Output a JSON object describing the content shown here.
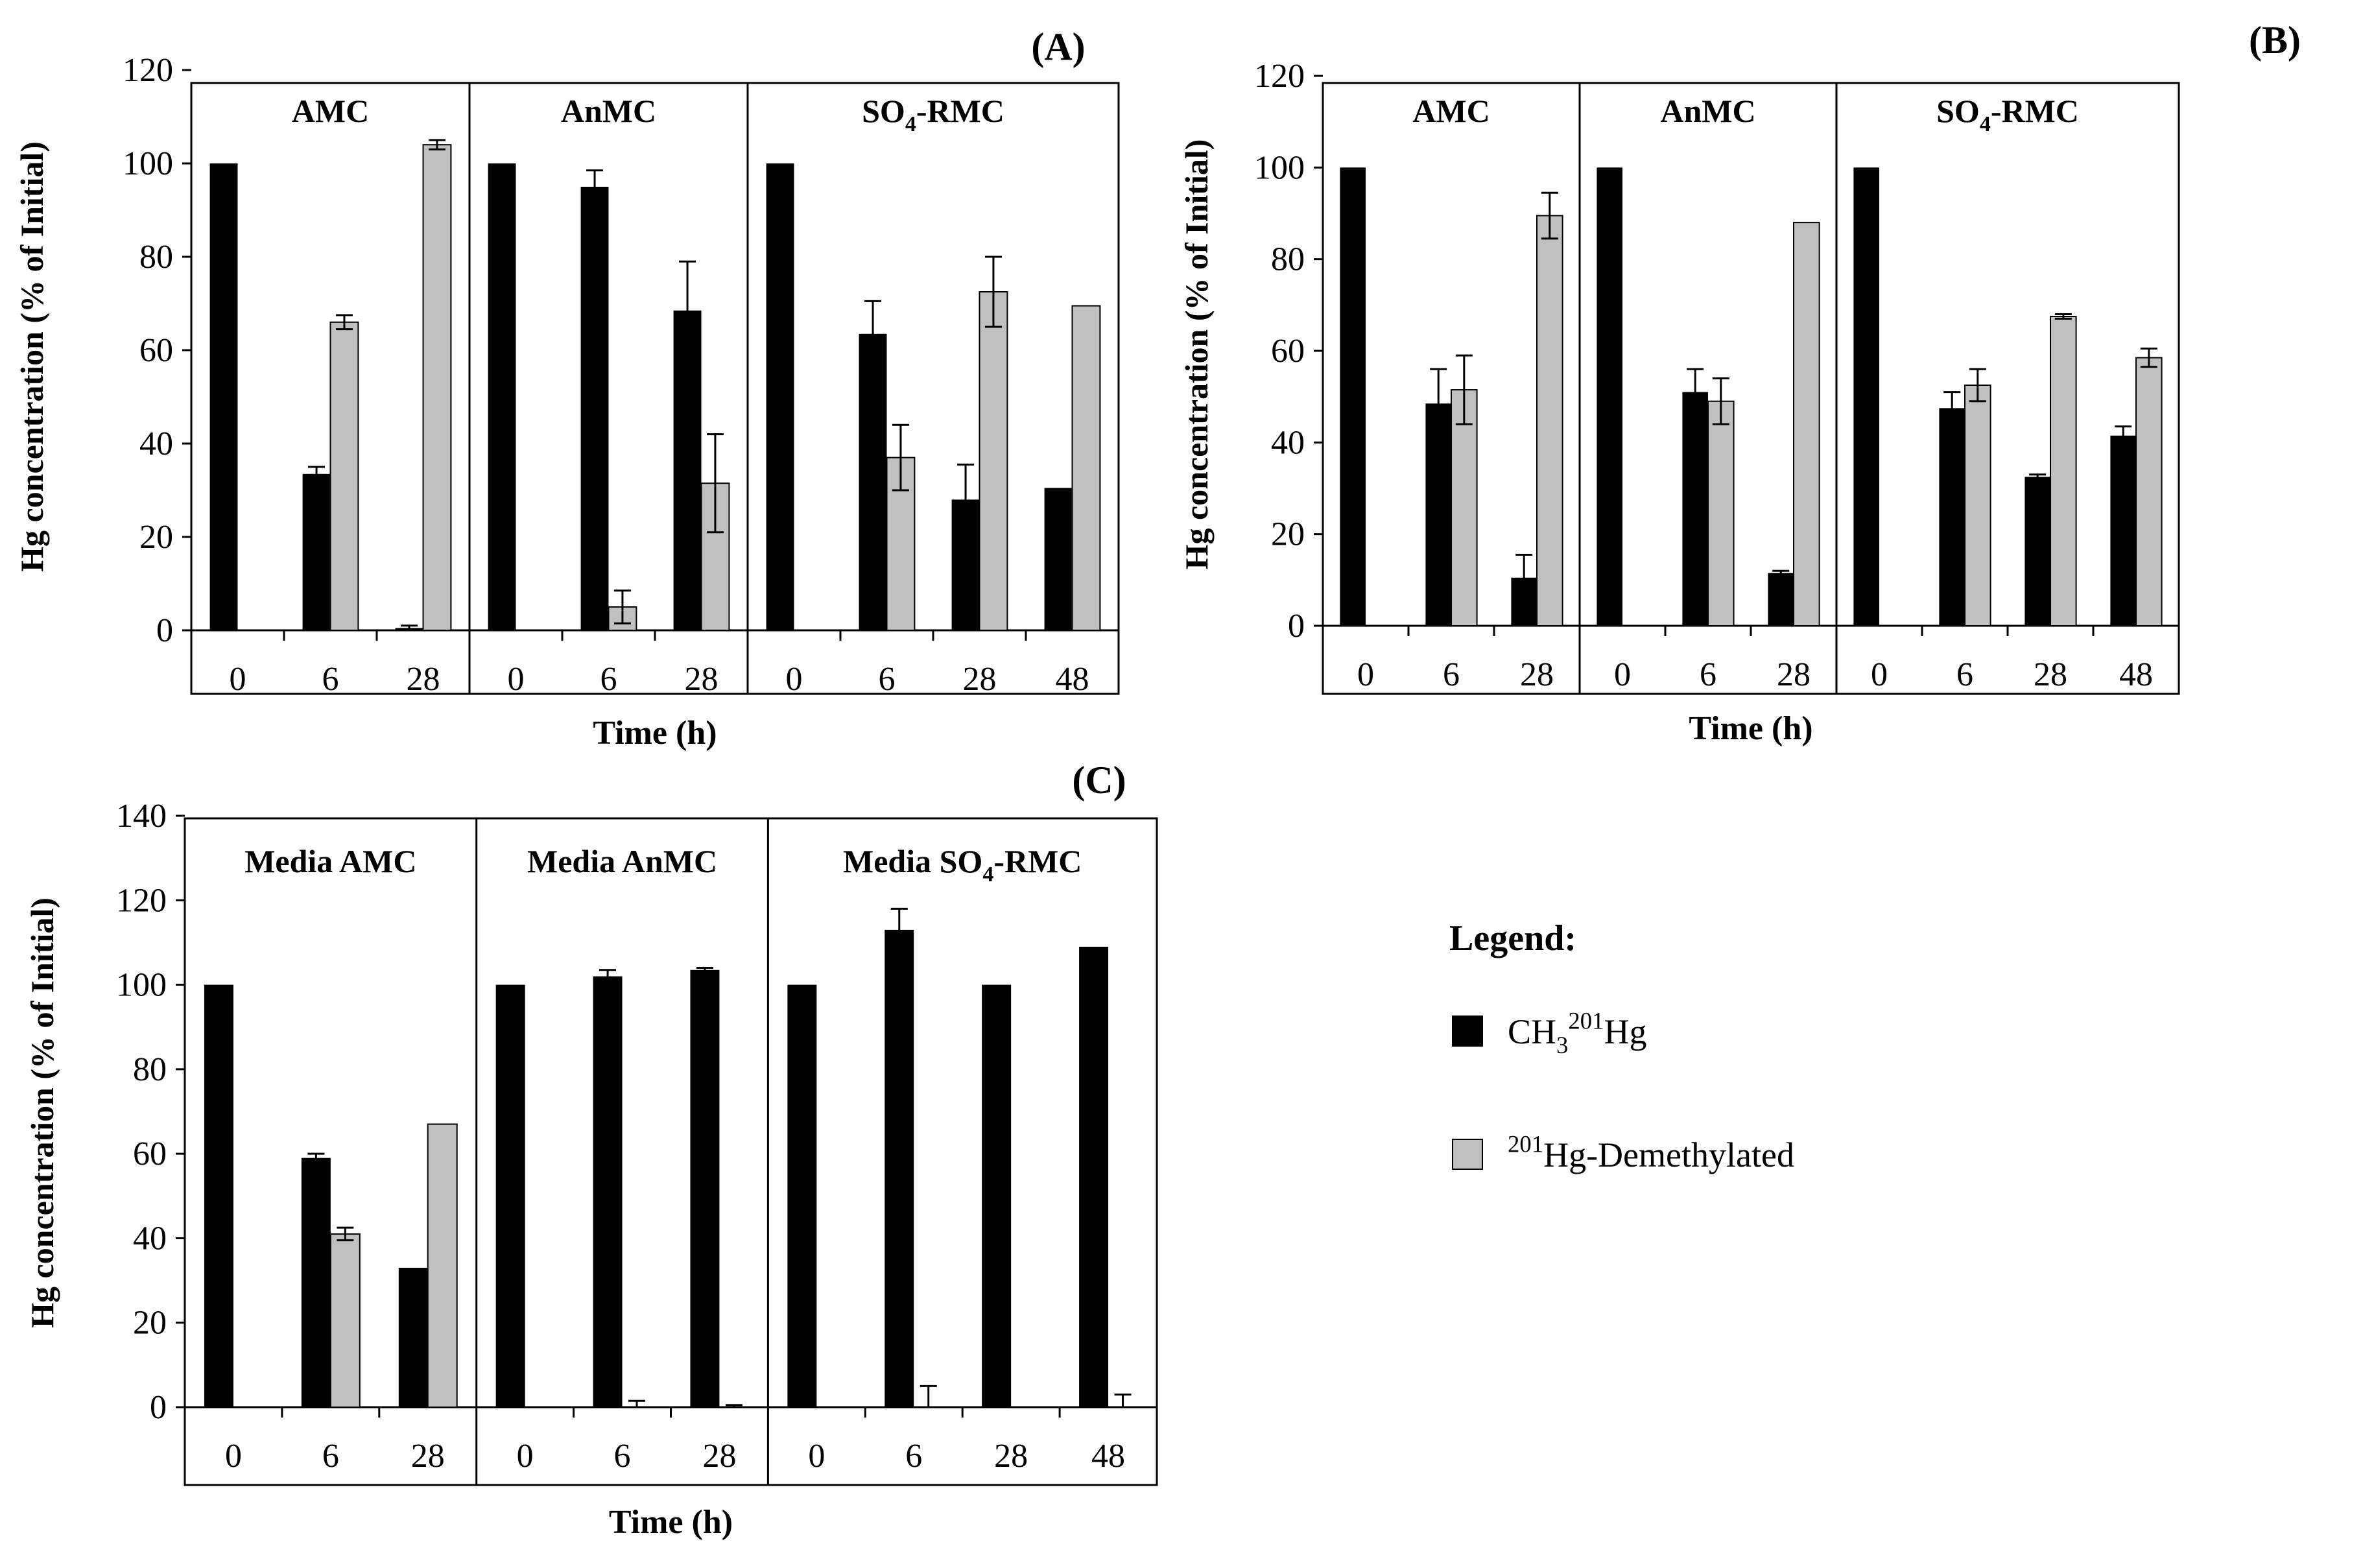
{
  "colors": {
    "series1": "#000000",
    "series2": "#c0c0c0",
    "frame": "#000000"
  },
  "legend": {
    "title": "Legend:",
    "entries": [
      {
        "name": "CH3201Hg",
        "color": "#000000"
      },
      {
        "name": "201Hg-Demethylated",
        "color": "#c0c0c0"
      }
    ]
  },
  "chart_data": [
    {
      "type": "bar",
      "title": "(A)",
      "xlabel": "Time (h)",
      "ylabel": "Hg concentration  (% of Initial)",
      "ylim": [
        0,
        120
      ],
      "yticks": [
        0,
        20,
        40,
        60,
        80,
        100,
        120
      ],
      "series_names": [
        "CH3201Hg",
        "201Hg-Demethylated"
      ],
      "groups": [
        {
          "label": "AMC",
          "categories": [
            {
              "x": "0",
              "values": [
                100,
                0
              ],
              "errors": [
                0,
                0
              ]
            },
            {
              "x": "6",
              "values": [
                33.5,
                66
              ],
              "errors": [
                1.5,
                1.5
              ]
            },
            {
              "x": "28",
              "values": [
                0.5,
                104
              ],
              "errors": [
                0.5,
                1
              ]
            }
          ]
        },
        {
          "label": "AnMC",
          "categories": [
            {
              "x": "0",
              "values": [
                100,
                0
              ],
              "errors": [
                0,
                0
              ]
            },
            {
              "x": "6",
              "values": [
                95,
                5
              ],
              "errors": [
                3.5,
                3.5
              ]
            },
            {
              "x": "28",
              "values": [
                68.5,
                31.5
              ],
              "errors": [
                10.5,
                10.5
              ]
            }
          ]
        },
        {
          "label": "SO4-RMC",
          "categories": [
            {
              "x": "0",
              "values": [
                100,
                0
              ],
              "errors": [
                0,
                0
              ]
            },
            {
              "x": "6",
              "values": [
                63.5,
                37
              ],
              "errors": [
                7,
                7
              ]
            },
            {
              "x": "28",
              "values": [
                28,
                72.5
              ],
              "errors": [
                7.5,
                7.5
              ]
            },
            {
              "x": "48",
              "values": [
                30.5,
                69.5
              ],
              "errors": [
                0,
                0
              ]
            }
          ]
        }
      ]
    },
    {
      "type": "bar",
      "title": "(B)",
      "xlabel": "Time (h)",
      "ylabel": "Hg concentration (% of Initial)",
      "ylim": [
        0,
        120
      ],
      "yticks": [
        0,
        20,
        40,
        60,
        80,
        100,
        120
      ],
      "series_names": [
        "CH3201Hg",
        "201Hg-Demethylated"
      ],
      "groups": [
        {
          "label": "AMC",
          "categories": [
            {
              "x": "0",
              "values": [
                100,
                0
              ],
              "errors": [
                0,
                0
              ]
            },
            {
              "x": "6",
              "values": [
                48.5,
                51.5
              ],
              "errors": [
                7.5,
                7.5
              ]
            },
            {
              "x": "28",
              "values": [
                10.5,
                89.5
              ],
              "errors": [
                5,
                5
              ]
            }
          ]
        },
        {
          "label": "AnMC",
          "categories": [
            {
              "x": "0",
              "values": [
                100,
                0
              ],
              "errors": [
                0,
                0
              ]
            },
            {
              "x": "6",
              "values": [
                51,
                49
              ],
              "errors": [
                5,
                5
              ]
            },
            {
              "x": "28",
              "values": [
                11.5,
                88
              ],
              "errors": [
                0.5,
                0
              ]
            }
          ]
        },
        {
          "label": "SO4-RMC",
          "categories": [
            {
              "x": "0",
              "values": [
                100,
                0
              ],
              "errors": [
                0,
                0
              ]
            },
            {
              "x": "6",
              "values": [
                47.5,
                52.5
              ],
              "errors": [
                3.5,
                3.5
              ]
            },
            {
              "x": "28",
              "values": [
                32.5,
                67.5
              ],
              "errors": [
                0.5,
                0.5
              ]
            },
            {
              "x": "48",
              "values": [
                41.5,
                58.5
              ],
              "errors": [
                2,
                2
              ]
            }
          ]
        }
      ]
    },
    {
      "type": "bar",
      "title": "(C)",
      "xlabel": "Time (h)",
      "ylabel": "Hg concentration (% of Initial)",
      "ylim": [
        0,
        140
      ],
      "yticks": [
        0,
        20,
        40,
        60,
        80,
        100,
        120,
        140
      ],
      "series_names": [
        "CH3201Hg",
        "201Hg-Demethylated"
      ],
      "groups": [
        {
          "label": "Media AMC",
          "categories": [
            {
              "x": "0",
              "values": [
                100,
                0
              ],
              "errors": [
                0,
                0
              ]
            },
            {
              "x": "6",
              "values": [
                59,
                41
              ],
              "errors": [
                1,
                1.5
              ]
            },
            {
              "x": "28",
              "values": [
                33,
                67
              ],
              "errors": [
                0,
                0
              ]
            }
          ]
        },
        {
          "label": "Media AnMC",
          "categories": [
            {
              "x": "0",
              "values": [
                100,
                0
              ],
              "errors": [
                0,
                0
              ]
            },
            {
              "x": "6",
              "values": [
                102,
                0
              ],
              "errors": [
                1.5,
                1.5
              ]
            },
            {
              "x": "28",
              "values": [
                103.5,
                0
              ],
              "errors": [
                0.5,
                0.5
              ]
            }
          ]
        },
        {
          "label": "Media SO4-RMC",
          "categories": [
            {
              "x": "0",
              "values": [
                100,
                0
              ],
              "errors": [
                0,
                0
              ]
            },
            {
              "x": "6",
              "values": [
                113,
                0
              ],
              "errors": [
                5,
                5
              ]
            },
            {
              "x": "28",
              "values": [
                100,
                0
              ],
              "errors": [
                0,
                0
              ]
            },
            {
              "x": "48",
              "values": [
                109,
                0
              ],
              "errors": [
                0,
                3
              ]
            }
          ]
        }
      ]
    }
  ]
}
